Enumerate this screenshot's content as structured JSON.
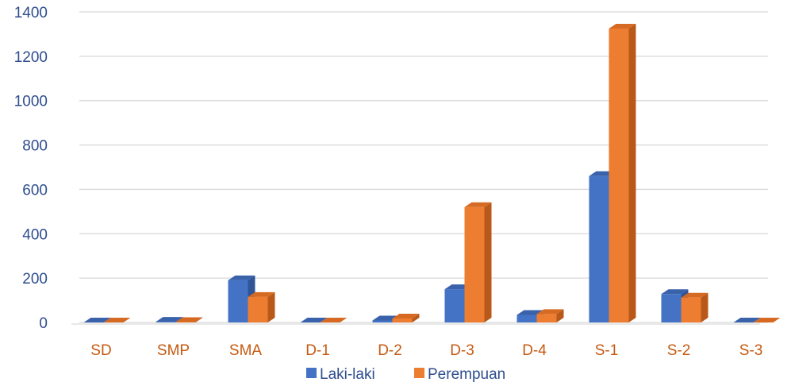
{
  "colors": {
    "laki_front": "#4472c4",
    "laki_top": "#3a62ab",
    "laki_side": "#2f5597",
    "perempuan_front": "#ed7d31",
    "perempuan_top": "#d66a22",
    "perempuan_side": "#b8591a",
    "grid": "#d9d9d9",
    "y_tick_text": "#2e4d8f",
    "x_tick_text": "#c55a11"
  },
  "chart_data": {
    "type": "bar",
    "categories": [
      "SD",
      "SMP",
      "SMA",
      "D-1",
      "D-2",
      "D-3",
      "D-4",
      "S-1",
      "S-2",
      "S-3"
    ],
    "series": [
      {
        "name": "Laki-laki",
        "values": [
          0,
          3,
          190,
          0,
          9,
          150,
          34,
          660,
          128,
          0
        ]
      },
      {
        "name": "Perempuan",
        "values": [
          0,
          2,
          115,
          0,
          18,
          520,
          38,
          1325,
          112,
          0
        ]
      }
    ],
    "yticks": [
      "0",
      "200",
      "400",
      "600",
      "800",
      "1000",
      "1200",
      "1400"
    ],
    "ylim": [
      0,
      1400
    ],
    "grid": true,
    "legend_position": "bottom",
    "style": "3d-clustered-column"
  }
}
